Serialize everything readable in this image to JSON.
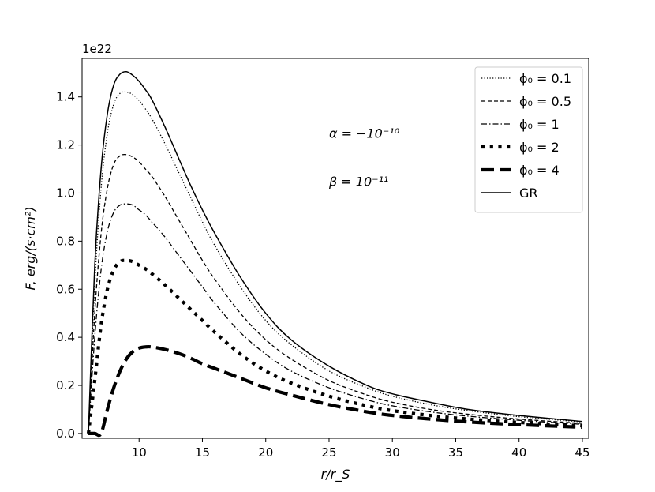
{
  "chart_data": {
    "type": "line",
    "xlabel": "r/r_S",
    "ylabel": "F, erg/(s·cm²)",
    "y_offset_text": "1e22",
    "xlim": [
      5.5,
      45.5
    ],
    "ylim": [
      -0.02,
      1.56
    ],
    "x_ticks": [
      10,
      15,
      20,
      25,
      30,
      35,
      40,
      45
    ],
    "x_tick_labels": [
      "10",
      "15",
      "20",
      "25",
      "30",
      "35",
      "40",
      "45"
    ],
    "y_ticks": [
      0.0,
      0.2,
      0.4,
      0.6,
      0.8,
      1.0,
      1.2,
      1.4
    ],
    "y_tick_labels": [
      "0.0",
      "0.2",
      "0.4",
      "0.6",
      "0.8",
      "1.0",
      "1.2",
      "1.4"
    ],
    "grid": false,
    "legend_position": "top-right",
    "annotations": [
      {
        "text": "α = −10⁻¹⁰",
        "x": 25,
        "y": 1.23
      },
      {
        "text": "β = 10⁻¹¹",
        "x": 25,
        "y": 1.03
      }
    ],
    "x": [
      6,
      6.5,
      7,
      7.5,
      8,
      8.5,
      9,
      9.5,
      10,
      10.5,
      11,
      12,
      13,
      14,
      15,
      16,
      18,
      20,
      22,
      25,
      28,
      30,
      33,
      36,
      40,
      45
    ],
    "series": [
      {
        "name": "ϕ₀ = 0.1",
        "style": "dotted",
        "values": [
          0.0,
          0.62,
          1.02,
          1.25,
          1.37,
          1.415,
          1.42,
          1.41,
          1.385,
          1.35,
          1.31,
          1.21,
          1.1,
          0.99,
          0.88,
          0.78,
          0.61,
          0.47,
          0.37,
          0.26,
          0.19,
          0.155,
          0.12,
          0.095,
          0.07,
          0.048
        ]
      },
      {
        "name": "ϕ₀ = 0.5",
        "style": "dashed",
        "values": [
          0.0,
          0.5,
          0.83,
          1.02,
          1.12,
          1.155,
          1.16,
          1.15,
          1.13,
          1.1,
          1.07,
          0.99,
          0.9,
          0.81,
          0.72,
          0.64,
          0.5,
          0.39,
          0.31,
          0.22,
          0.16,
          0.13,
          0.1,
          0.08,
          0.06,
          0.042
        ]
      },
      {
        "name": "ϕ₀ = 1",
        "style": "dashdot",
        "values": [
          0.0,
          0.4,
          0.68,
          0.84,
          0.92,
          0.95,
          0.955,
          0.95,
          0.93,
          0.91,
          0.88,
          0.82,
          0.75,
          0.68,
          0.61,
          0.54,
          0.42,
          0.33,
          0.26,
          0.19,
          0.14,
          0.115,
          0.09,
          0.072,
          0.055,
          0.038
        ]
      },
      {
        "name": "ϕ₀ = 2",
        "style": "thick-dotted",
        "values": [
          0.0,
          0.22,
          0.45,
          0.6,
          0.68,
          0.715,
          0.72,
          0.715,
          0.7,
          0.685,
          0.665,
          0.62,
          0.57,
          0.52,
          0.47,
          0.42,
          0.33,
          0.26,
          0.21,
          0.155,
          0.115,
          0.095,
          0.075,
          0.06,
          0.046,
          0.032
        ]
      },
      {
        "name": "ϕ₀ = 4",
        "style": "thick-dashed",
        "values": [
          0.0,
          0.0,
          0.0,
          0.1,
          0.19,
          0.26,
          0.31,
          0.34,
          0.355,
          0.36,
          0.36,
          0.35,
          0.335,
          0.315,
          0.29,
          0.27,
          0.23,
          0.19,
          0.16,
          0.12,
          0.09,
          0.075,
          0.06,
          0.048,
          0.037,
          0.026
        ]
      },
      {
        "name": "GR",
        "style": "solid",
        "values": [
          0.0,
          0.7,
          1.1,
          1.33,
          1.45,
          1.495,
          1.505,
          1.49,
          1.465,
          1.43,
          1.39,
          1.28,
          1.16,
          1.04,
          0.93,
          0.83,
          0.65,
          0.5,
          0.39,
          0.28,
          0.2,
          0.165,
          0.13,
          0.1,
          0.075,
          0.05
        ]
      }
    ]
  }
}
